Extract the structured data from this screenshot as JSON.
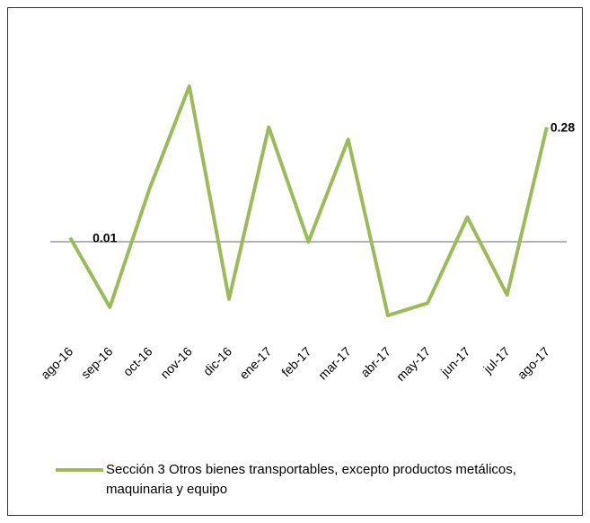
{
  "chart_data": {
    "type": "line",
    "categories": [
      "ago-16",
      "sep-16",
      "oct-16",
      "nov-16",
      "dic-16",
      "ene-17",
      "feb-17",
      "mar-17",
      "abr-17",
      "may-17",
      "jun-17",
      "jul-17",
      "ago-17"
    ],
    "series": [
      {
        "name": "Sección 3 Otros bienes transportables, excepto productos metálicos, maquinaria y equipo",
        "color": "#9bbb59",
        "values": [
          0.01,
          -0.16,
          0.13,
          0.38,
          -0.14,
          0.28,
          0.0,
          0.25,
          -0.18,
          -0.15,
          0.06,
          -0.13,
          0.28
        ],
        "value_labels": [
          "0.01",
          null,
          null,
          null,
          null,
          null,
          null,
          null,
          null,
          null,
          null,
          null,
          "0.28"
        ]
      }
    ],
    "legend": "bottom"
  }
}
